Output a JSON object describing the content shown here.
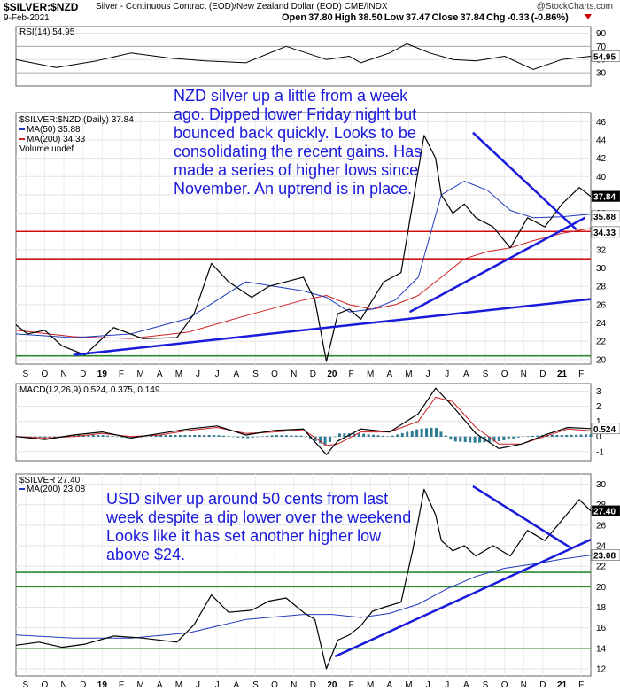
{
  "header": {
    "symbol": "$SILVER:$NZD",
    "description": "Silver - Continuous Contract (EOD)/New Zealand Dollar (EOD) CME/INDX",
    "credit": "@StockCharts.com",
    "date": "9-Feb-2021",
    "ohlc": "Open 37.80  High 38.50  Low 37.47  Close 37.84  Chg -0.33 (-0.86%)"
  },
  "colors": {
    "price": "#000000",
    "ma50": "#1f3bbf",
    "ma200": "#cc2020",
    "trendline": "#1a1adb",
    "support": "#2a8a2a",
    "resistance": "#d01010",
    "rsi_fill": "#5a8a5a",
    "macd_hist": "#2e7b96"
  },
  "annotations": {
    "nzd_note": "NZD silver up a little from a week\nago. Dipped lower Friday night but\nbounced back quickly. Looks to be\nconsolidating the recent gains. Has\nmade a series of higher lows since\nNovember. An uptrend is in place.",
    "usd_note": "USD silver up around 50 cents from last\nweek despite a dip lower over the weekend\n Looks like it has set another higher low\nabove $24."
  },
  "chart_data": [
    {
      "type": "line",
      "name": "RSI(14)",
      "title": "RSI(14) 54.95",
      "value_label": "54.95",
      "yticks": [
        "90",
        "70",
        "50",
        "30"
      ],
      "ylim": [
        10,
        100
      ],
      "overbought": 70,
      "oversold": 30,
      "series": [
        {
          "name": "RSI(14)",
          "x": [
            0,
            0.07,
            0.14,
            0.2,
            0.27,
            0.33,
            0.4,
            0.47,
            0.54,
            0.58,
            0.6,
            0.65,
            0.68,
            0.72,
            0.76,
            0.8,
            0.85,
            0.9,
            0.95,
            1.0
          ],
          "values": [
            50,
            38,
            48,
            60,
            52,
            48,
            45,
            70,
            50,
            55,
            45,
            60,
            74,
            60,
            50,
            48,
            55,
            35,
            50,
            54.95
          ]
        }
      ]
    },
    {
      "type": "line",
      "name": "$SILVER:$NZD",
      "title": "$SILVER:$NZD (Daily) 37.84",
      "ylim": [
        19.5,
        47
      ],
      "yticks": [
        "46",
        "44",
        "42",
        "40",
        "38",
        "36",
        "34",
        "32",
        "30",
        "28",
        "26",
        "24",
        "22",
        "20"
      ],
      "xticks": [
        "S",
        "O",
        "N",
        "D",
        "19",
        "F",
        "M",
        "A",
        "M",
        "J",
        "J",
        "A",
        "S",
        "O",
        "N",
        "D",
        "20",
        "F",
        "M",
        "A",
        "M",
        "J",
        "J",
        "A",
        "S",
        "O",
        "N",
        "D",
        "21",
        "F"
      ],
      "legend": [
        "$SILVER:$NZD (Daily) 37.84",
        "MA(50) 35.88",
        "MA(200) 34.33",
        "Volume undef"
      ],
      "value_labels": {
        "last": "37.84",
        "ma50": "35.88",
        "ma200": "34.33"
      },
      "series": [
        {
          "name": "$SILVER:$NZD",
          "x": [
            0,
            0.02,
            0.05,
            0.08,
            0.12,
            0.17,
            0.22,
            0.28,
            0.31,
            0.34,
            0.37,
            0.41,
            0.44,
            0.47,
            0.5,
            0.52,
            0.54,
            0.56,
            0.58,
            0.6,
            0.62,
            0.64,
            0.67,
            0.69,
            0.71,
            0.73,
            0.74,
            0.76,
            0.78,
            0.8,
            0.83,
            0.86,
            0.89,
            0.92,
            0.95,
            0.98,
            1.0
          ],
          "values": [
            23.8,
            22.8,
            23.2,
            21.5,
            20.5,
            23.5,
            22.3,
            22.4,
            25,
            30.5,
            28.5,
            26.8,
            28,
            28.5,
            29,
            26.5,
            19.8,
            25,
            25.5,
            24.4,
            26.5,
            28.5,
            29.5,
            37,
            44.5,
            42,
            38,
            36,
            37,
            35.5,
            34.5,
            32.2,
            35.5,
            34.5,
            37,
            38.8,
            37.84
          ]
        },
        {
          "name": "MA(50) 35.88",
          "x": [
            0,
            0.1,
            0.2,
            0.3,
            0.4,
            0.5,
            0.54,
            0.58,
            0.62,
            0.66,
            0.7,
            0.74,
            0.78,
            0.82,
            0.86,
            0.9,
            0.95,
            1.0
          ],
          "values": [
            22.8,
            22.4,
            22.8,
            24.5,
            28.5,
            27.5,
            26.8,
            25.2,
            25.5,
            26.5,
            29,
            38,
            39.5,
            38.5,
            36.3,
            35.5,
            35.6,
            35.88
          ]
        },
        {
          "name": "MA(200) 34.33",
          "x": [
            0,
            0.1,
            0.2,
            0.3,
            0.4,
            0.5,
            0.54,
            0.58,
            0.62,
            0.66,
            0.7,
            0.74,
            0.78,
            0.82,
            0.86,
            0.9,
            0.95,
            1.0
          ],
          "values": [
            23.2,
            22.5,
            22.3,
            23,
            24.8,
            26.5,
            27,
            26,
            25.5,
            26,
            27,
            29,
            31,
            31.8,
            32.2,
            33,
            33.8,
            34.33
          ]
        }
      ]
    },
    {
      "type": "line",
      "name": "MACD",
      "title": "MACD(12,26,9) 0.524, 0.375, 0.149",
      "value_label": "0.524",
      "yticks": [
        "3",
        "2",
        "1",
        "0",
        "-1"
      ],
      "ylim": [
        -1.6,
        3.5
      ],
      "series": [
        {
          "name": "MACD(12,26,9) 0.524",
          "x": [
            0,
            0.05,
            0.1,
            0.15,
            0.2,
            0.25,
            0.3,
            0.35,
            0.4,
            0.45,
            0.5,
            0.54,
            0.56,
            0.6,
            0.65,
            0.7,
            0.73,
            0.76,
            0.8,
            0.84,
            0.88,
            0.92,
            0.96,
            1.0
          ],
          "values": [
            0,
            -0.2,
            0.1,
            0.3,
            -0.1,
            0.2,
            0.5,
            0.7,
            0.1,
            0.4,
            0.5,
            -1.2,
            -0.3,
            0.5,
            0.3,
            1.5,
            3.2,
            2.0,
            0.2,
            -0.8,
            -0.5,
            0.1,
            0.6,
            0.524
          ]
        },
        {
          "name": "0.375",
          "x": [
            0,
            0.05,
            0.1,
            0.15,
            0.2,
            0.25,
            0.3,
            0.35,
            0.4,
            0.45,
            0.5,
            0.54,
            0.56,
            0.6,
            0.65,
            0.7,
            0.73,
            0.76,
            0.8,
            0.84,
            0.88,
            0.92,
            0.96,
            1.0
          ],
          "values": [
            0,
            -0.1,
            0,
            0.2,
            0,
            0.1,
            0.4,
            0.6,
            0.2,
            0.3,
            0.45,
            -0.6,
            -0.5,
            0.3,
            0.3,
            1.0,
            2.6,
            2.3,
            0.6,
            -0.5,
            -0.5,
            0,
            0.5,
            0.375
          ]
        },
        {
          "name": "0.149",
          "x": [
            0,
            0.05,
            0.1,
            0.15,
            0.2,
            0.25,
            0.3,
            0.35,
            0.4,
            0.45,
            0.5,
            0.54,
            0.56,
            0.6,
            0.65,
            0.7,
            0.73,
            0.76,
            0.8,
            0.84,
            0.88,
            0.92,
            0.96,
            1.0
          ],
          "values": [
            0,
            -0.1,
            0.1,
            0.1,
            -0.1,
            0.1,
            0.1,
            0.1,
            -0.1,
            0.1,
            0.05,
            -0.6,
            0.2,
            0.2,
            0,
            0.5,
            0.6,
            -0.3,
            -0.4,
            -0.3,
            0,
            0.1,
            0.1,
            0.149
          ]
        }
      ]
    },
    {
      "type": "line",
      "name": "$SILVER",
      "title": "$SILVER 27.40",
      "ylim": [
        11.3,
        31
      ],
      "yticks": [
        "30",
        "28",
        "26",
        "24",
        "22",
        "20",
        "18",
        "16",
        "14",
        "12"
      ],
      "xticks": [
        "S",
        "O",
        "N",
        "D",
        "19",
        "F",
        "M",
        "A",
        "M",
        "J",
        "J",
        "A",
        "S",
        "O",
        "N",
        "D",
        "20",
        "F",
        "M",
        "A",
        "M",
        "J",
        "J",
        "A",
        "S",
        "O",
        "N",
        "D",
        "21",
        "F"
      ],
      "legend": [
        "$SILVER 27.40",
        "MA(200) 23.08"
      ],
      "value_labels": {
        "last": "27.40",
        "ma200": "23.08"
      },
      "series": [
        {
          "name": "$SILVER",
          "x": [
            0,
            0.04,
            0.08,
            0.12,
            0.17,
            0.22,
            0.28,
            0.31,
            0.34,
            0.37,
            0.41,
            0.44,
            0.47,
            0.5,
            0.52,
            0.54,
            0.56,
            0.58,
            0.6,
            0.62,
            0.64,
            0.67,
            0.69,
            0.71,
            0.73,
            0.74,
            0.76,
            0.78,
            0.8,
            0.83,
            0.86,
            0.89,
            0.92,
            0.95,
            0.98,
            1.0
          ],
          "values": [
            14.3,
            14.6,
            14.1,
            14.4,
            15.2,
            15.0,
            14.6,
            16.3,
            19.2,
            17.5,
            17.7,
            18.6,
            18.9,
            17.5,
            16.8,
            12,
            14.8,
            15.3,
            16.2,
            17.6,
            18,
            18.5,
            23.5,
            29.5,
            27,
            24.5,
            23.5,
            24,
            23,
            24,
            23,
            25.5,
            24.5,
            26.5,
            28.5,
            27.4
          ]
        },
        {
          "name": "MA(200) 23.08",
          "x": [
            0,
            0.1,
            0.2,
            0.3,
            0.4,
            0.5,
            0.55,
            0.6,
            0.65,
            0.7,
            0.75,
            0.8,
            0.85,
            0.9,
            0.95,
            1.0
          ],
          "values": [
            15.3,
            15,
            15,
            15.5,
            16.8,
            17.3,
            17.3,
            17,
            17.4,
            18.3,
            19.8,
            21,
            21.8,
            22.2,
            22.7,
            23.08
          ]
        }
      ]
    }
  ]
}
